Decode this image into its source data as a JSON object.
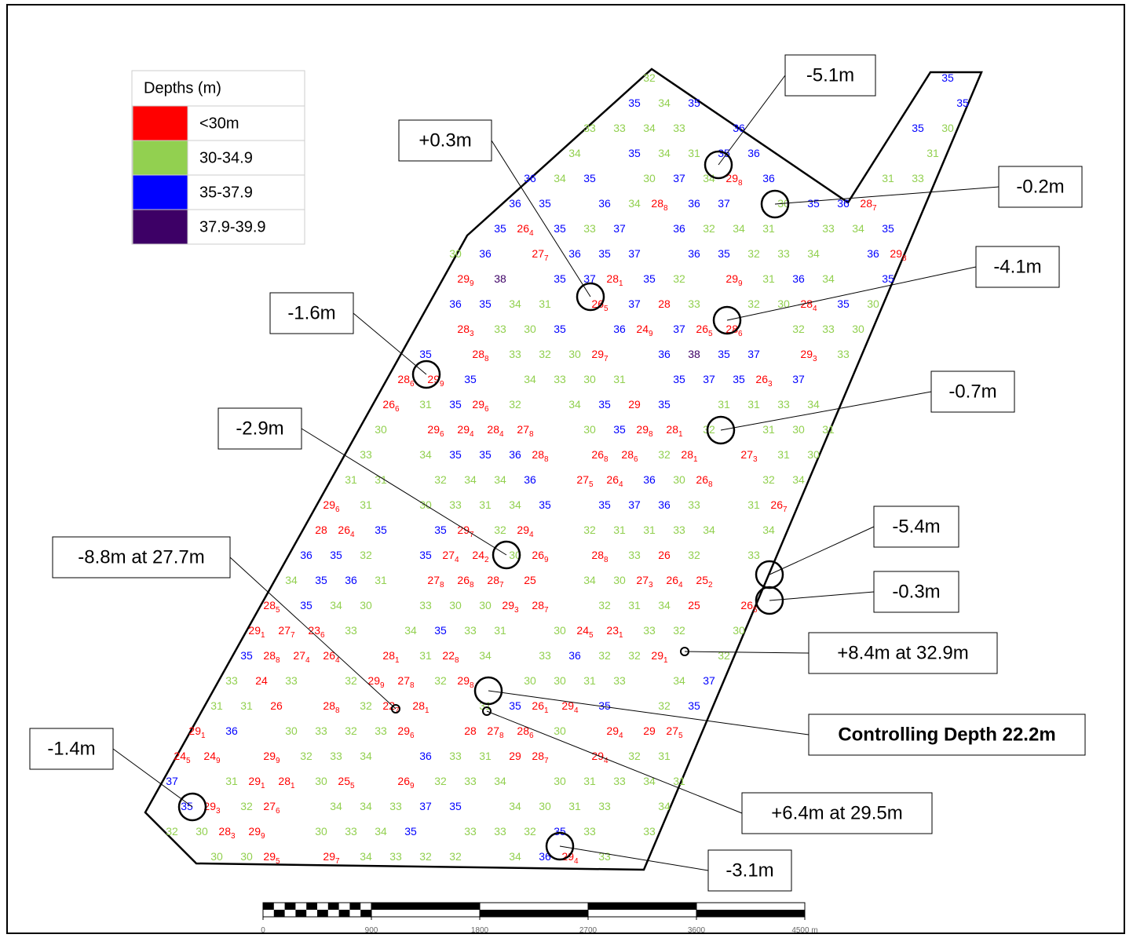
{
  "legend": {
    "title": "Depths (m)",
    "items": [
      {
        "label": "<30m",
        "color": "#ff0000"
      },
      {
        "label": "30-34.9",
        "color": "#92d050"
      },
      {
        "label": "35-37.9",
        "color": "#0000ff"
      },
      {
        "label": "37.9-39.9",
        "color": "#3d0066"
      }
    ]
  },
  "soundings": [
    "32",
    "35",
    "35",
    "34",
    "35",
    "35",
    "33",
    "33",
    "34",
    "33",
    "36",
    "35",
    "30",
    "34",
    "35",
    "34",
    "31",
    "35",
    "36",
    "31",
    "36",
    "34",
    "35",
    "30",
    "37",
    "34",
    [
      "29",
      "8"
    ],
    "36",
    "31",
    "33",
    "36",
    "35",
    "36",
    "34",
    [
      "28",
      "8"
    ],
    "36",
    "37",
    "30",
    "35",
    "36",
    [
      "28",
      "7"
    ],
    "35",
    [
      "26",
      "4"
    ],
    "35",
    "33",
    "37",
    "36",
    "32",
    "34",
    "31",
    "33",
    "34",
    "35",
    "30",
    "36",
    [
      "27",
      "7"
    ],
    "36",
    "35",
    "37",
    "36",
    "35",
    "32",
    "33",
    "34",
    "36",
    [
      "29",
      "8"
    ],
    [
      "29",
      "9"
    ],
    "38",
    "35",
    "37",
    [
      "28",
      "1"
    ],
    "35",
    "32",
    [
      "29",
      "9"
    ],
    "31",
    "36",
    "34",
    "35",
    "36",
    "35",
    "34",
    "31",
    [
      "26",
      "5"
    ],
    "37",
    "28",
    "33",
    "32",
    "30",
    [
      "28",
      "4"
    ],
    "35",
    "30",
    [
      "28",
      "3"
    ],
    "33",
    "30",
    "35",
    "36",
    [
      "24",
      "9"
    ],
    "37",
    [
      "26",
      "5"
    ],
    [
      "28",
      "6"
    ],
    "32",
    "33",
    "30",
    "35",
    [
      "28",
      "8"
    ],
    "33",
    "32",
    "30",
    [
      "29",
      "7"
    ],
    "36",
    "38",
    "35",
    "37",
    [
      "29",
      "3"
    ],
    "33",
    [
      "28",
      "6"
    ],
    [
      "29",
      "9"
    ],
    "35",
    "34",
    "33",
    "30",
    "31",
    "35",
    "37",
    "35",
    [
      "26",
      "3"
    ],
    "37",
    [
      "26",
      "6"
    ],
    "31",
    "35",
    [
      "29",
      "6"
    ],
    "32",
    "34",
    "35",
    "29",
    "35",
    "31",
    "31",
    "33",
    "34",
    "30",
    [
      "29",
      "6"
    ],
    [
      "29",
      "4"
    ],
    [
      "28",
      "4"
    ],
    [
      "27",
      "8"
    ],
    "30",
    "35",
    [
      "29",
      "8"
    ],
    [
      "28",
      "1"
    ],
    "32",
    "31",
    "30",
    "31",
    "33",
    "34",
    "35",
    "35",
    "36",
    [
      "28",
      "8"
    ],
    [
      "26",
      "8"
    ],
    [
      "28",
      "6"
    ],
    "32",
    [
      "28",
      "1"
    ],
    [
      "27",
      "3"
    ],
    "31",
    "30",
    "31",
    "31",
    "32",
    "34",
    "34",
    "36",
    [
      "27",
      "5"
    ],
    [
      "26",
      "4"
    ],
    "36",
    "30",
    [
      "26",
      "8"
    ],
    "32",
    "34",
    [
      "29",
      "6"
    ],
    "31",
    "30",
    "33",
    "31",
    "34",
    "35",
    "35",
    "37",
    "36",
    "33",
    "31",
    [
      "26",
      "7"
    ],
    "28",
    [
      "26",
      "4"
    ],
    "35",
    "35",
    [
      "29",
      "7"
    ],
    "32",
    [
      "29",
      "4"
    ],
    "32",
    "31",
    "31",
    "33",
    "34",
    "34",
    "36",
    "35",
    "32",
    "35",
    [
      "27",
      "4"
    ],
    [
      "24",
      "2"
    ],
    "30",
    [
      "26",
      "9"
    ],
    [
      "28",
      "8"
    ],
    "33",
    "26",
    "32",
    "33",
    "34",
    "35",
    "36",
    "31",
    [
      "27",
      "8"
    ],
    [
      "26",
      "8"
    ],
    [
      "28",
      "7"
    ],
    "25",
    "34",
    "30",
    [
      "27",
      "3"
    ],
    [
      "26",
      "4"
    ],
    [
      "25",
      "2"
    ],
    [
      "28",
      "5"
    ],
    "35",
    "34",
    "30",
    "33",
    "30",
    "30",
    [
      "29",
      "3"
    ],
    [
      "28",
      "7"
    ],
    "32",
    "31",
    "34",
    "25",
    [
      "26",
      "5"
    ],
    [
      "29",
      "1"
    ],
    [
      "27",
      "7"
    ],
    [
      "23",
      "6"
    ],
    "33",
    "34",
    "35",
    "33",
    "31",
    "30",
    [
      "24",
      "5"
    ],
    [
      "23",
      "1"
    ],
    "33",
    "32",
    "30",
    "35",
    [
      "28",
      "8"
    ],
    [
      "27",
      "4"
    ],
    [
      "26",
      "4"
    ],
    [
      "28",
      "1"
    ],
    "31",
    [
      "22",
      "8"
    ],
    "34",
    "33",
    "36",
    "32",
    "32",
    [
      "29",
      "1"
    ],
    "32",
    "33",
    "24",
    "33",
    "32",
    [
      "29",
      "9"
    ],
    [
      "27",
      "8"
    ],
    "32",
    [
      "29",
      "8"
    ],
    "30",
    "30",
    "31",
    "33",
    "34",
    "37",
    "31",
    "31",
    "26",
    [
      "28",
      "8"
    ],
    "32",
    [
      "22",
      "7"
    ],
    [
      "28",
      "1"
    ],
    "31",
    "35",
    [
      "26",
      "1"
    ],
    [
      "29",
      "4"
    ],
    "35",
    "32",
    "35",
    [
      "29",
      "1"
    ],
    "36",
    "30",
    "33",
    "32",
    "33",
    [
      "29",
      "6"
    ],
    "28",
    [
      "27",
      "8"
    ],
    [
      "28",
      "6"
    ],
    "30",
    [
      "29",
      "4"
    ],
    "29",
    [
      "27",
      "5"
    ],
    [
      "24",
      "5"
    ],
    [
      "24",
      "9"
    ],
    [
      "29",
      "9"
    ],
    "32",
    "33",
    "34",
    "36",
    "33",
    "31",
    "29",
    [
      "28",
      "7"
    ],
    [
      "29",
      "4"
    ],
    "32",
    "31",
    "37",
    "31",
    [
      "29",
      "1"
    ],
    [
      "28",
      "1"
    ],
    "30",
    [
      "25",
      "5"
    ],
    [
      "26",
      "9"
    ],
    "32",
    "33",
    "34",
    "30",
    "31",
    "33",
    "34",
    "31",
    "35",
    [
      "29",
      "3"
    ],
    "32",
    [
      "27",
      "6"
    ],
    "34",
    "34",
    "33",
    "37",
    "35",
    "34",
    "30",
    "31",
    "33",
    "34",
    "32",
    "30",
    [
      "28",
      "3"
    ],
    [
      "29",
      "9"
    ],
    "30",
    "33",
    "34",
    "35",
    "33",
    "33",
    "32",
    "35",
    "33",
    "33",
    "30",
    "30",
    [
      "29",
      "5"
    ],
    [
      "29",
      "7"
    ],
    "34",
    "33",
    "32",
    "32",
    "34",
    "36",
    [
      "29",
      "4"
    ],
    "33"
  ],
  "callouts": [
    {
      "label": "-5.1m"
    },
    {
      "label": "+0.3m"
    },
    {
      "label": "-0.2m"
    },
    {
      "label": "-4.1m"
    },
    {
      "label": "-1.6m"
    },
    {
      "label": "-0.7m"
    },
    {
      "label": "-2.9m"
    },
    {
      "label": "-5.4m"
    },
    {
      "label": "-0.3m"
    },
    {
      "label": "-8.8m at 27.7m"
    },
    {
      "label": "+8.4m at 32.9m"
    },
    {
      "label": "Controlling Depth 22.2m"
    },
    {
      "label": "+6.4m at 29.5m"
    },
    {
      "label": "-1.4m"
    },
    {
      "label": "-3.1m"
    }
  ],
  "scale_bar": {
    "ticks": [
      0,
      900,
      1800,
      2700,
      3600,
      {
        "value": 4500,
        "label": "4500 m"
      }
    ]
  }
}
